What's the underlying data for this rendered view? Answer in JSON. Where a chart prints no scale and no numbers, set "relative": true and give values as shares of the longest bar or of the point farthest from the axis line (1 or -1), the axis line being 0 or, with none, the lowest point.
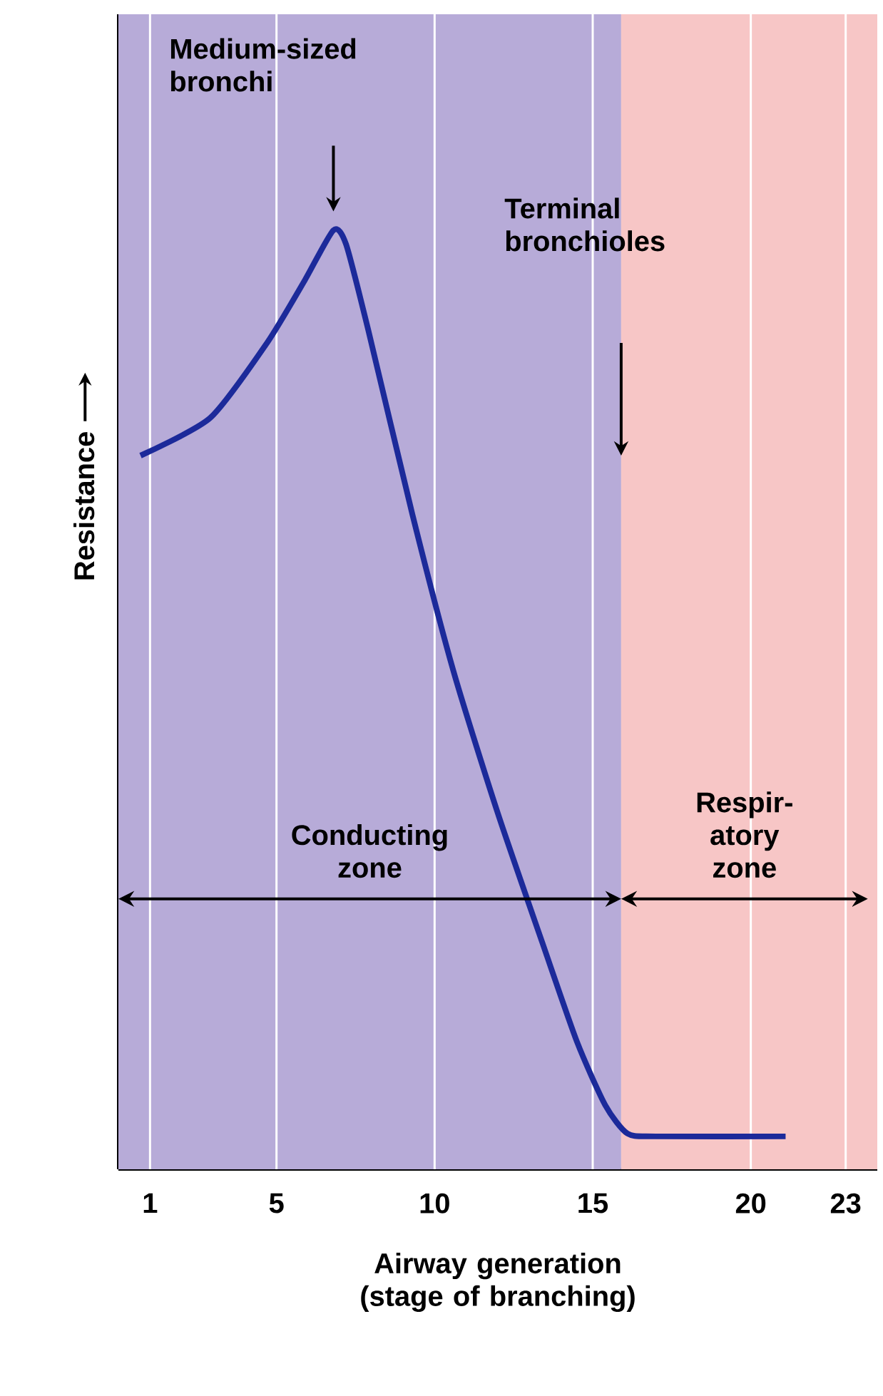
{
  "chart_data": {
    "type": "line",
    "relative": true,
    "xlabel": "Airway generation (stage of branching)",
    "ylabel": "Resistance",
    "xlim": [
      0,
      24
    ],
    "xticks": [
      1,
      5,
      10,
      15,
      20,
      23
    ],
    "grid": "x",
    "series": [
      {
        "color": "#1c2a9a",
        "x": [
          0.7,
          2.9,
          4.7,
          5.9,
          6.8,
          7.2,
          7.9,
          9.3,
          10.6,
          12.0,
          13.4,
          14.5,
          15.4,
          16.1,
          17.0,
          21.1
        ],
        "values": [
          0.76,
          0.8,
          0.88,
          0.947,
          1.0,
          0.985,
          0.894,
          0.697,
          0.53,
          0.379,
          0.242,
          0.136,
          0.068,
          0.038,
          0.035,
          0.035
        ]
      }
    ],
    "bands": [
      {
        "axis": "x",
        "from": 0,
        "to": 15.9,
        "label": "Conducting zone",
        "color": "#b7abd8"
      },
      {
        "axis": "x",
        "from": 15.9,
        "to": 24,
        "label": "Respir-atory zone",
        "color": "#f7c6c6"
      }
    ],
    "annotations": [
      "Medium-sized bronchi",
      "Terminal bronchioles"
    ]
  }
}
